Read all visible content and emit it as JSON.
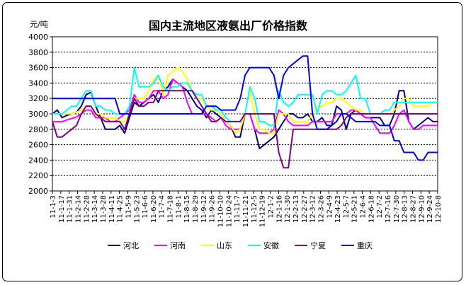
{
  "chart_data": {
    "type": "line",
    "title": "国内主流地区液氨出厂价格指数",
    "ylabel": "元/吨",
    "xlabel": "",
    "ylim": [
      2000,
      4000
    ],
    "yticks": [
      2000,
      2200,
      2400,
      2600,
      2800,
      3000,
      3200,
      3400,
      3600,
      3800,
      4000
    ],
    "grid": "horizontal",
    "legend": "bottom",
    "x_tick_labels": [
      "11-1-3",
      "11-1-17",
      "11-1-31",
      "11-2-14",
      "11-2-28",
      "11-3-14",
      "11-3-28",
      "11-4-11",
      "11-4-25",
      "11-5-9",
      "11-5-23",
      "11-6-6",
      "11-6-20",
      "11-7-4",
      "11-7-18",
      "11-8-1",
      "11-8-15",
      "11-8-29",
      "11-9-12",
      "11-9-26",
      "11-10-10",
      "11-10-24",
      "11-11-7",
      "11-11-21",
      "11-12-5",
      "11-12-19",
      "12-1-2",
      "12-1-16",
      "12-1-30",
      "12-2-13",
      "12-2-27",
      "12-3-12",
      "12-3-26",
      "12-4-9",
      "12-4-23",
      "12-5-7",
      "12-5-21",
      "12-6-4",
      "12-6-18",
      "12-7-2",
      "12-7-16",
      "12-7-30",
      "12-8-13",
      "12-8-27",
      "12-9-10",
      "12-9-24",
      "12-10-8"
    ],
    "series": [
      {
        "name": "河北",
        "color": "#000080",
        "values": [
          3000,
          3050,
          2950,
          2980,
          3000,
          3020,
          3100,
          3250,
          3280,
          3100,
          2950,
          2800,
          2800,
          2800,
          2850,
          2750,
          2950,
          3150,
          3100,
          3150,
          3200,
          3250,
          3150,
          3300,
          3350,
          3450,
          3400,
          3350,
          3300,
          3200,
          3100,
          3050,
          2950,
          3050,
          3000,
          2950,
          2900,
          2850,
          2700,
          2700,
          3000,
          3000,
          2800,
          2550,
          2600,
          2650,
          2700,
          2800,
          2900,
          3000,
          3000,
          2950,
          2950,
          3000,
          2900,
          2900,
          2950,
          2850,
          2850,
          3100,
          3050,
          2800,
          3000,
          3050,
          3000,
          2950,
          2950,
          2950,
          2950,
          2850,
          2850,
          3000,
          3300,
          3300,
          2900,
          2800,
          2850,
          2900,
          2950,
          2900,
          2900
        ]
      },
      {
        "name": "河南",
        "color": "#ff00ff",
        "values": [
          2900,
          2900,
          2900,
          2920,
          2940,
          2960,
          3000,
          3050,
          3050,
          2950,
          2950,
          2950,
          2900,
          2900,
          2950,
          3000,
          3050,
          3250,
          3150,
          3150,
          3200,
          3300,
          3300,
          3200,
          3250,
          3450,
          3400,
          3350,
          3150,
          3000,
          3000,
          3000,
          3000,
          2950,
          2900,
          2950,
          2850,
          2800,
          2800,
          2800,
          3000,
          3000,
          2800,
          2750,
          2750,
          2750,
          2800,
          3050,
          3000,
          2900,
          2850,
          2850,
          2850,
          2850,
          2900,
          2900,
          2900,
          2900,
          2900,
          3000,
          3000,
          3000,
          3050,
          3050,
          3000,
          2950,
          2950,
          2850,
          2750,
          2750,
          2750,
          2850,
          3000,
          3050,
          2900,
          2800,
          2800,
          2850,
          2850,
          2850,
          2850
        ]
      },
      {
        "name": "山东",
        "color": "#ffff00",
        "values": [
          3000,
          3000,
          3000,
          3000,
          3000,
          3020,
          3050,
          3100,
          3100,
          3000,
          3000,
          2950,
          2950,
          2950,
          2900,
          2900,
          3000,
          3200,
          3200,
          3200,
          3300,
          3450,
          3500,
          3250,
          3500,
          3550,
          3600,
          3550,
          3450,
          3300,
          3200,
          3200,
          3100,
          3050,
          3050,
          3000,
          2900,
          2850,
          2750,
          2800,
          3000,
          3300,
          3000,
          2800,
          2800,
          2750,
          2750,
          3000,
          3000,
          3000,
          2900,
          2900,
          2900,
          2900,
          3000,
          3100,
          3100,
          3150,
          3150,
          3200,
          3200,
          3150,
          3100,
          3050,
          3050,
          3000,
          3000,
          3000,
          3000,
          3000,
          3000,
          3050,
          3100,
          3200,
          3200,
          3100,
          3100,
          3100,
          3100,
          3150,
          3150
        ]
      },
      {
        "name": "安徽",
        "color": "#00ffff",
        "values": [
          3000,
          3000,
          3000,
          3050,
          3100,
          3100,
          3200,
          3300,
          3300,
          3100,
          3100,
          3050,
          3050,
          3000,
          3000,
          3000,
          3100,
          3600,
          3350,
          3350,
          3350,
          3400,
          3500,
          3350,
          3300,
          3350,
          3350,
          3400,
          3400,
          3300,
          3250,
          3250,
          3100,
          3100,
          3050,
          3050,
          2950,
          2900,
          2900,
          2900,
          3000,
          3350,
          3200,
          2900,
          2900,
          2850,
          2850,
          3300,
          3150,
          3100,
          3150,
          3250,
          3250,
          3250,
          3250,
          3000,
          3250,
          3300,
          3300,
          3250,
          3250,
          3300,
          3400,
          3500,
          3200,
          3200,
          3000,
          3000,
          3000,
          3050,
          3050,
          3150,
          3150,
          3150,
          3150,
          3150,
          3150,
          3150,
          3150,
          3150,
          3150
        ]
      },
      {
        "name": "宁夏",
        "color": "#800080",
        "values": [
          2900,
          2700,
          2700,
          2750,
          2800,
          2850,
          3000,
          3100,
          3100,
          3000,
          2950,
          2900,
          2900,
          2900,
          2900,
          2800,
          3000,
          3200,
          3100,
          3100,
          3150,
          3150,
          3300,
          3300,
          3300,
          3300,
          3300,
          3300,
          3300,
          3300,
          3200,
          3100,
          3000,
          2900,
          2900,
          2950,
          2900,
          2900,
          2900,
          2900,
          3000,
          3000,
          3000,
          3000,
          3000,
          3000,
          3000,
          2500,
          2300,
          2300,
          2800,
          2800,
          2800,
          2800,
          2800,
          2800,
          2800,
          2800,
          2800,
          2800,
          2850,
          2950,
          3000,
          3000,
          3000,
          3000,
          3000,
          3000,
          3000,
          3000,
          3000,
          3000,
          3000,
          3000,
          3000,
          3000,
          3000,
          3000,
          3000,
          3000,
          3000
        ]
      },
      {
        "name": "重庆",
        "color": "#0000ff",
        "values": [
          3200,
          3200,
          3200,
          3200,
          3200,
          3200,
          3200,
          3200,
          3200,
          3200,
          3200,
          3200,
          3200,
          3200,
          3000,
          3000,
          3000,
          3000,
          3000,
          3000,
          3000,
          3000,
          3000,
          3000,
          3000,
          3000,
          3000,
          3000,
          3000,
          3000,
          3000,
          3000,
          3100,
          3100,
          3100,
          3050,
          3050,
          3050,
          3050,
          3200,
          3500,
          3600,
          3600,
          3600,
          3600,
          3600,
          3500,
          3200,
          3500,
          3600,
          3650,
          3700,
          3750,
          3750,
          3000,
          2800,
          2800,
          2800,
          2850,
          2900,
          3000,
          3000,
          2950,
          2900,
          2900,
          2900,
          2900,
          2900,
          2850,
          2850,
          2850,
          2650,
          2650,
          2500,
          2500,
          2500,
          2400,
          2400,
          2500,
          2500,
          2500
        ]
      }
    ]
  }
}
